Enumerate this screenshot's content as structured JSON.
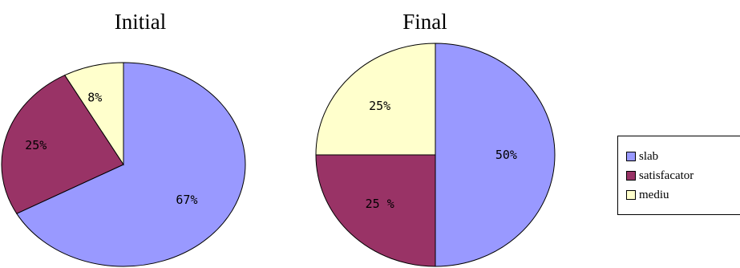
{
  "chart_data": [
    {
      "type": "pie",
      "title": "Initial",
      "categories": [
        "slab",
        "satisfacator",
        "mediu"
      ],
      "values": [
        67,
        25,
        8
      ],
      "labels": [
        "67%",
        "25%",
        "8%"
      ],
      "colors": [
        "#9999ff",
        "#993366",
        "#ffffcc"
      ]
    },
    {
      "type": "pie",
      "title": "Final",
      "categories": [
        "slab",
        "satisfacator",
        "mediu"
      ],
      "values": [
        50,
        25,
        25
      ],
      "labels": [
        "50%",
        "25 %",
        "25%"
      ],
      "colors": [
        "#9999ff",
        "#993366",
        "#ffffcc"
      ]
    }
  ],
  "legend": {
    "position": "right",
    "items": [
      {
        "label": "slab",
        "color": "#9999ff"
      },
      {
        "label": "satisfacator",
        "color": "#993366"
      },
      {
        "label": "mediu",
        "color": "#ffffcc"
      }
    ]
  }
}
